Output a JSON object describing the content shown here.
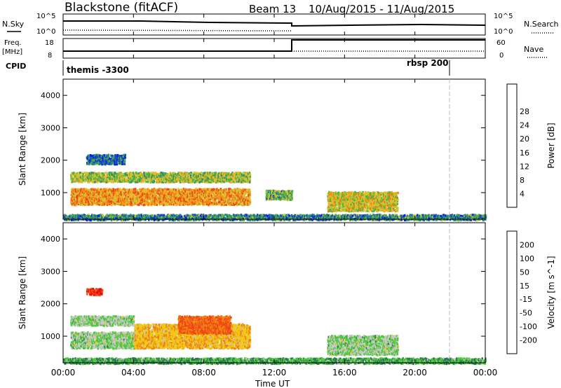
{
  "header": {
    "station": "Blackstone (fitACF)",
    "beam": "Beam 13",
    "dates": "10/Aug/2015 - 11/Aug/2015"
  },
  "top_panels": {
    "nsky_label": "N.Sky",
    "nsky_ticks": [
      "10^5",
      "10^0"
    ],
    "nsearch_label": "N.Search",
    "nsearch_ticks": [
      "10^5",
      "10^0"
    ],
    "freq_label": "Freq.",
    "freq_unit": "[MHz]",
    "freq_ticks": [
      "18",
      "8"
    ],
    "nave_label": "Nave",
    "nave_ticks": [
      "60",
      "0"
    ],
    "cpid_label": "CPID",
    "cpid_modes": [
      "themis -3300",
      "rbsp 200"
    ]
  },
  "x_axis": {
    "label": "Time UT",
    "ticks": [
      "00:00",
      "04:00",
      "08:00",
      "12:00",
      "16:00",
      "20:00",
      "00:00"
    ]
  },
  "chart_data": [
    {
      "type": "heatmap",
      "panel": "power",
      "ylabel": "Slant Range [km]",
      "yticks": [
        "1000",
        "2000",
        "3000",
        "4000"
      ],
      "ylim": [
        180,
        4500
      ],
      "xlim": [
        0,
        24
      ],
      "colorbar": {
        "label": "Power [dB]",
        "ticks": [
          "4",
          "8",
          "12",
          "16",
          "20",
          "24",
          "28"
        ],
        "colors": [
          "#0a1ee8",
          "#1e50b4",
          "#2a8c78",
          "#50b43c",
          "#c8c83c",
          "#f0b41e",
          "#f08214",
          "#f04614",
          "#dc0a0a"
        ]
      },
      "regions": [
        {
          "t0": 0.4,
          "t1": 10.6,
          "r0": 650,
          "r1": 1150,
          "value": 22
        },
        {
          "t0": 0.4,
          "t1": 10.6,
          "r0": 1350,
          "r1": 1650,
          "value": 16
        },
        {
          "t0": 1.3,
          "t1": 3.5,
          "r0": 1900,
          "r1": 2200,
          "value": 8
        },
        {
          "t0": 11.5,
          "t1": 13.0,
          "r0": 800,
          "r1": 1100,
          "value": 14
        },
        {
          "t0": 15.0,
          "t1": 19.0,
          "r0": 450,
          "r1": 1050,
          "value": 18
        },
        {
          "t0": 0.0,
          "t1": 24.0,
          "r0": 180,
          "r1": 350,
          "value": 10
        }
      ]
    },
    {
      "type": "heatmap",
      "panel": "velocity",
      "ylabel": "Slant Range [km]",
      "yticks": [
        "1000",
        "2000",
        "3000",
        "4000"
      ],
      "ylim": [
        180,
        4500
      ],
      "xlim": [
        0,
        24
      ],
      "colorbar": {
        "label": "Velocity [m s^-1]",
        "ticks": [
          "200",
          "100",
          "50",
          "15",
          "-15",
          "-50",
          "-100",
          "-200"
        ],
        "colors": [
          "#1428c8",
          "#2850a0",
          "#2a7c50",
          "#50c83c",
          "#c8c8c8",
          "#f0c814",
          "#f08214",
          "#f04614",
          "#e60a0a"
        ]
      },
      "regions": [
        {
          "t0": 0.4,
          "t1": 4.0,
          "r0": 650,
          "r1": 1150,
          "value": 0
        },
        {
          "t0": 4.0,
          "t1": 10.6,
          "r0": 650,
          "r1": 1400,
          "value": -60
        },
        {
          "t0": 6.5,
          "t1": 9.5,
          "r0": 1100,
          "r1": 1650,
          "value": -150
        },
        {
          "t0": 0.4,
          "t1": 4.0,
          "r0": 1350,
          "r1": 1650,
          "value": 0
        },
        {
          "t0": 1.3,
          "t1": 2.2,
          "r0": 2300,
          "r1": 2500,
          "value": -200
        },
        {
          "t0": 15.0,
          "t1": 19.0,
          "r0": 450,
          "r1": 1050,
          "value": 0
        },
        {
          "t0": 0.0,
          "t1": 24.0,
          "r0": 180,
          "r1": 350,
          "value": 30
        }
      ]
    }
  ]
}
